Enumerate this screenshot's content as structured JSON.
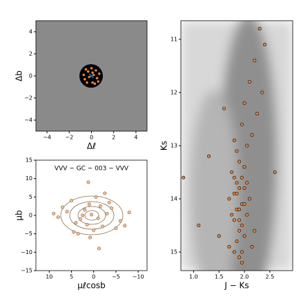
{
  "chart_data": [
    {
      "type": "scatter",
      "xlabel": "Δℓ",
      "ylabel": "Δb",
      "xlim": [
        -5,
        5
      ],
      "ylim": [
        -5,
        5
      ],
      "xticks": [
        {
          "value": -4,
          "label": "−4"
        },
        {
          "value": -2,
          "label": "−2"
        },
        0,
        2,
        4
      ],
      "yticks": [
        {
          "value": -4,
          "label": "−4"
        },
        {
          "value": -2,
          "label": "−2"
        },
        0,
        2,
        4
      ],
      "series": [
        {
          "color": "#e8823a",
          "marker": "circle",
          "x": [
            0.2,
            -0.3,
            0.5,
            -0.6,
            0.1,
            0.4,
            -0.2,
            0.7,
            -0.5,
            0.0,
            -0.7,
            0.3,
            -0.4,
            0.6,
            0.1
          ],
          "values": [
            0.1,
            0.4,
            -0.2,
            -0.3,
            -0.6,
            0.5,
            -0.1,
            0.2,
            0.6,
            0.7,
            0.1,
            -0.7,
            -0.6,
            -0.5,
            0.3
          ]
        },
        {
          "color": "#1f77b4",
          "marker": "x",
          "x": [
            0
          ],
          "values": [
            0
          ]
        }
      ]
    },
    {
      "type": "scatter",
      "title": "VVV − GC − 003 − VVV",
      "xlabel": "μℓcosb",
      "ylabel": "μb",
      "xlim": [
        13,
        -12
      ],
      "ylim": [
        -15,
        15
      ],
      "xticks": [
        10,
        5,
        0,
        {
          "value": -5,
          "label": "−5"
        },
        {
          "value": -10,
          "label": "−10"
        }
      ],
      "yticks": [
        {
          "value": -15,
          "label": "−15"
        },
        {
          "value": -10,
          "label": "−10"
        },
        {
          "value": -5,
          "label": "−5"
        },
        0,
        5,
        10,
        15
      ],
      "series": [
        {
          "color": "#e8c4a6",
          "edge": "#8b5a2b",
          "marker": "circle",
          "x": [
            0.5,
            -1,
            2,
            -3,
            4,
            1,
            -2,
            3,
            -4,
            0,
            6,
            -6,
            5,
            -5,
            2.5,
            -1.5,
            1.5,
            -0.5,
            8,
            -8,
            3.5,
            -3.5,
            0.8,
            -2.5,
            7,
            -7,
            4.5,
            1.2,
            -1.2,
            9
          ],
          "values": [
            0.2,
            -0.8,
            1.5,
            0.5,
            -2,
            3,
            -3,
            -1,
            2,
            -4,
            1,
            -1.5,
            4,
            -3.5,
            0,
            2.5,
            -2.5,
            5,
            -0.5,
            0.8,
            -5,
            3.5,
            -6,
            6,
            2.2,
            -2.8,
            -4.5,
            9,
            -9,
            0.5
          ]
        }
      ]
    },
    {
      "type": "scatter",
      "xlabel": "J − Ks",
      "ylabel": "Ks",
      "xlim": [
        0.75,
        2.95
      ],
      "ylim": [
        15.35,
        10.65
      ],
      "xticks": [
        {
          "value": 1,
          "label": "1.0"
        },
        1.5,
        {
          "value": 2,
          "label": "2.0"
        },
        2.5
      ],
      "yticks": [
        11,
        12,
        13,
        14,
        15
      ],
      "series": [
        {
          "color": "#e8823a",
          "edge": "#000",
          "marker": "circle",
          "x": [
            2.3,
            2.4,
            2.2,
            2.1,
            2.35,
            2.0,
            2.25,
            1.95,
            2.15,
            1.6,
            2.05,
            1.85,
            1.9,
            2.0,
            1.75,
            1.8,
            1.95,
            1.85,
            1.9,
            2.0,
            1.8,
            1.7,
            2.1,
            1.95,
            1.85,
            1.9,
            1.75,
            2.05,
            1.8,
            1.95,
            1.9,
            2.0,
            1.85,
            1.7,
            2.15,
            1.8,
            1.9,
            1.95,
            2.0,
            1.85,
            1.3,
            1.1,
            0.8,
            1.5,
            2.6,
            1.9,
            2.05,
            1.8,
            1.95,
            2.2
          ],
          "values": [
            10.8,
            11.1,
            11.4,
            11.8,
            12.0,
            12.2,
            12.4,
            12.6,
            12.8,
            12.3,
            13.0,
            13.1,
            13.3,
            13.4,
            13.5,
            13.6,
            13.6,
            13.7,
            13.8,
            13.8,
            13.9,
            14.0,
            14.0,
            14.1,
            14.2,
            14.2,
            14.3,
            14.3,
            14.4,
            14.5,
            14.6,
            14.7,
            14.8,
            14.9,
            14.9,
            15.0,
            15.1,
            15.2,
            14.1,
            13.9,
            13.2,
            14.5,
            13.6,
            14.7,
            13.5,
            14.4,
            13.7,
            12.9,
            15.0,
            14.6
          ]
        }
      ]
    }
  ]
}
